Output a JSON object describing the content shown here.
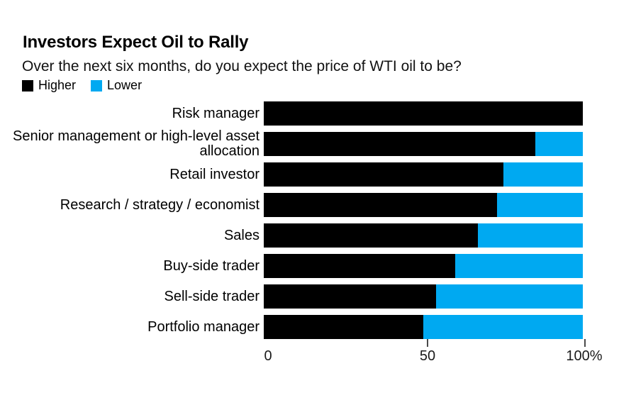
{
  "page": {
    "background": "#ffffff"
  },
  "header": {
    "title": "Investors Expect Oil to Rally",
    "subtitle": "Over the next six months, do you expect the price of WTI oil to be?"
  },
  "legend": {
    "items": [
      {
        "label": "Higher",
        "color": "#000000"
      },
      {
        "label": "Lower",
        "color": "#00a9f1"
      }
    ]
  },
  "chart_data": {
    "type": "bar",
    "orientation": "horizontal",
    "stacked": true,
    "title": "Investors Expect Oil to Rally",
    "subtitle": "Over the next six months, do you expect the price of WTI oil to be?",
    "categories": [
      "Risk manager",
      "Senior management or high-level asset allocation",
      "Retail investor",
      "Research / strategy / economist",
      "Sales",
      "Buy-side trader",
      "Sell-side trader",
      "Portfolio manager"
    ],
    "series": [
      {
        "name": "Higher",
        "color": "#000000",
        "values": [
          100,
          85,
          75,
          73,
          67,
          60,
          54,
          50
        ]
      },
      {
        "name": "Lower",
        "color": "#00a9f1",
        "values": [
          0,
          15,
          25,
          27,
          33,
          40,
          46,
          50
        ]
      }
    ],
    "xlim": [
      0,
      100
    ],
    "x_ticks": [
      {
        "value": 0,
        "label": "0"
      },
      {
        "value": 50,
        "label": "50"
      },
      {
        "value": 100,
        "label": "100%"
      }
    ],
    "xlabel": "",
    "ylabel": "",
    "grid": false,
    "legend_position": "top-left",
    "unit": "percent"
  }
}
